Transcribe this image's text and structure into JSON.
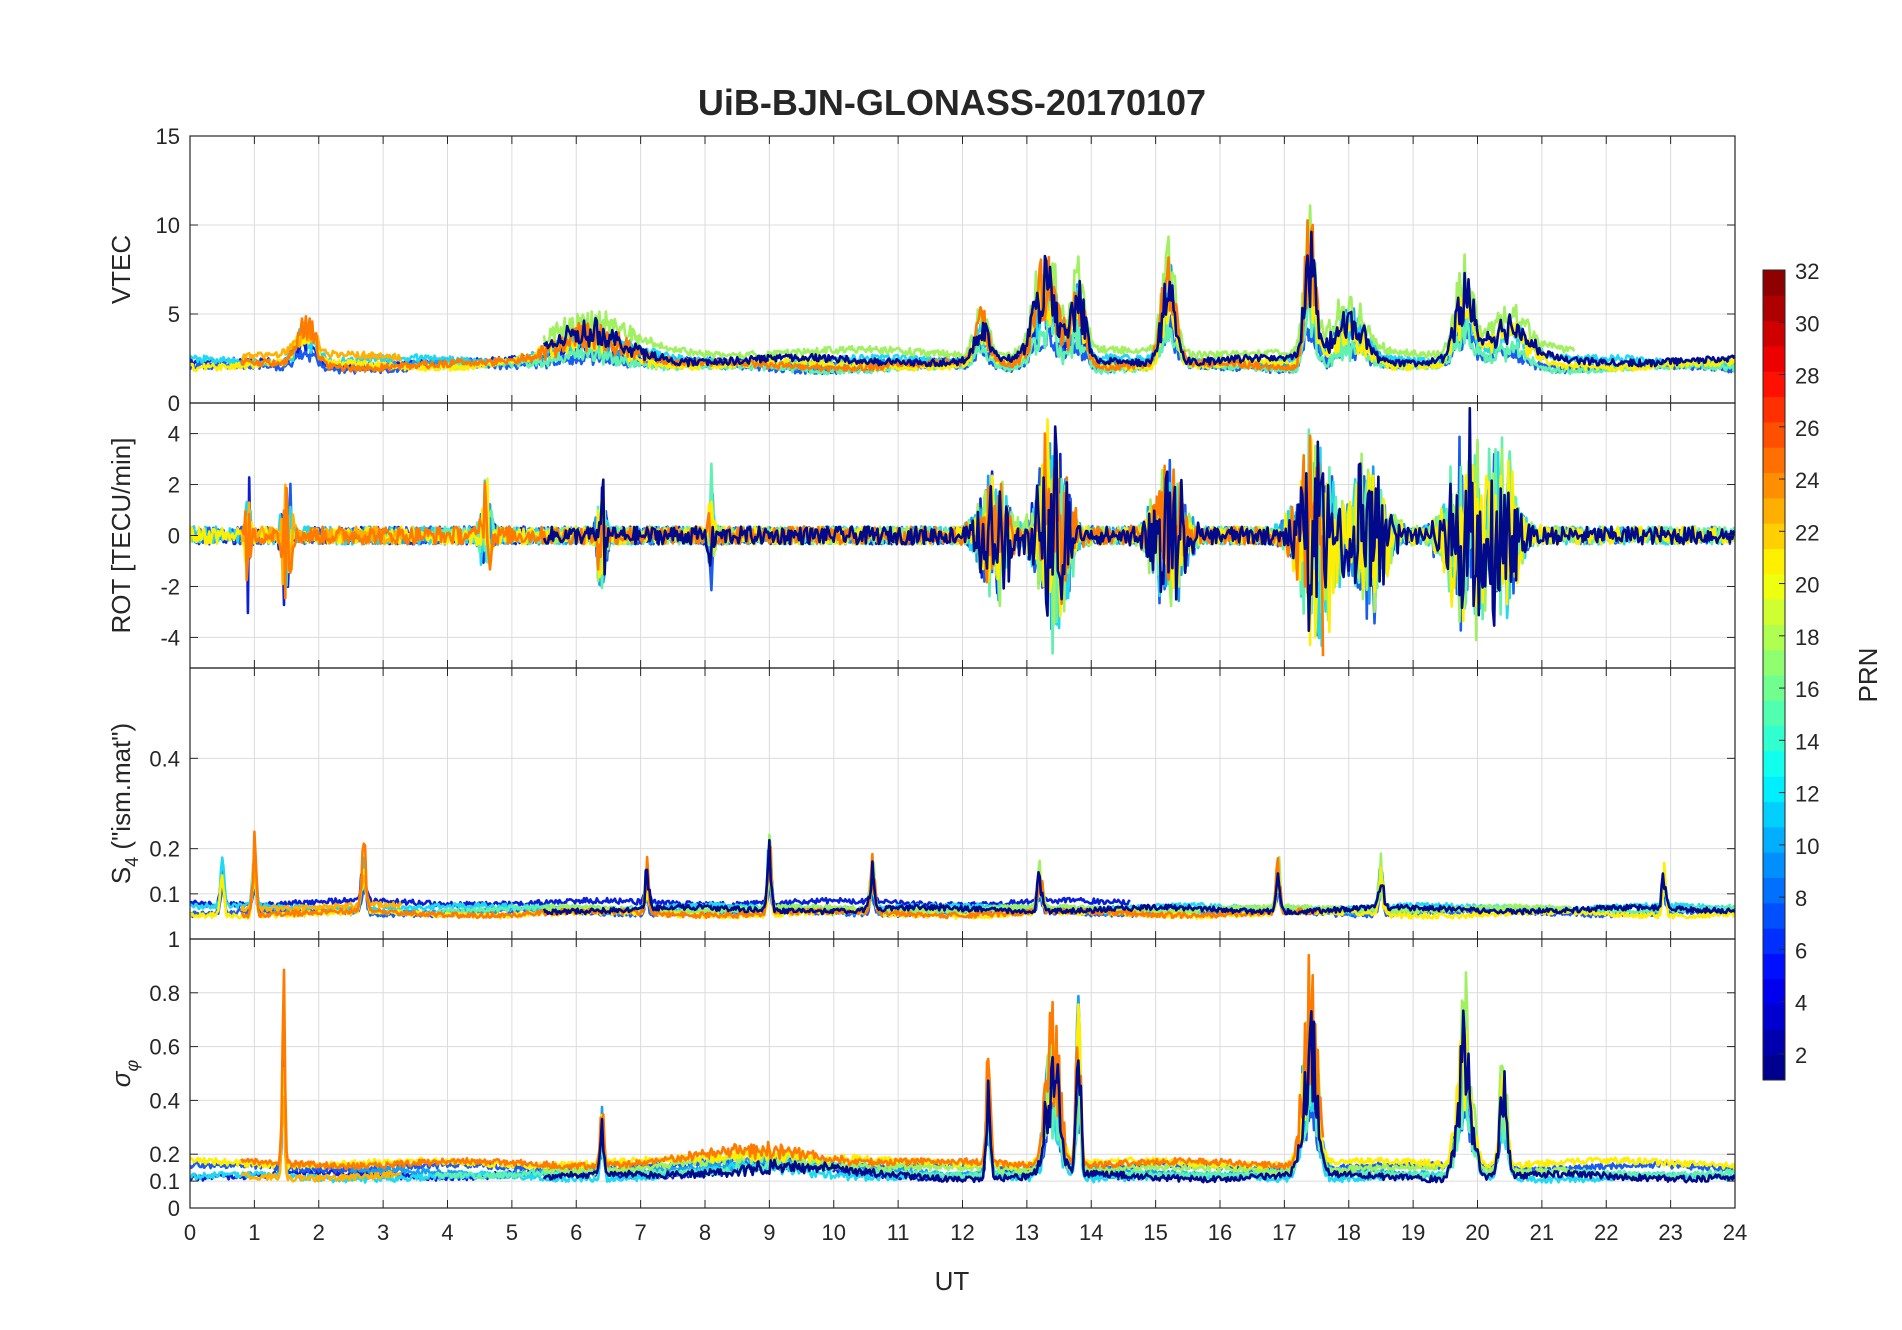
{
  "chart_data": {
    "type": "line",
    "title": "UiB-BJN-GLONASS-20170107",
    "xlabel": "UT",
    "xlim": [
      0,
      24
    ],
    "xticks": [
      0,
      1,
      2,
      3,
      4,
      5,
      6,
      7,
      8,
      9,
      10,
      11,
      12,
      13,
      14,
      15,
      16,
      17,
      18,
      19,
      20,
      21,
      22,
      23,
      24
    ],
    "grid": true,
    "panels": [
      {
        "name": "vtec",
        "ylabel": "VTEC",
        "ylim": [
          0,
          15
        ],
        "yticks": [
          0,
          5,
          10,
          15
        ],
        "ytick_labels": [
          "0",
          "5",
          "10",
          "15"
        ],
        "baseline": 2.2,
        "noise": 0.5,
        "events": [
          {
            "t": 1.8,
            "amp": 3.5,
            "w": 0.2
          },
          {
            "t": 6.2,
            "amp": 2.8,
            "w": 0.8
          },
          {
            "t": 12.3,
            "amp": 3.5,
            "w": 0.15
          },
          {
            "t": 13.3,
            "amp": 8.0,
            "w": 0.25
          },
          {
            "t": 13.8,
            "amp": 6.0,
            "w": 0.15
          },
          {
            "t": 15.2,
            "amp": 7.5,
            "w": 0.15
          },
          {
            "t": 17.4,
            "amp": 10.0,
            "w": 0.12
          },
          {
            "t": 18.0,
            "amp": 4.0,
            "w": 0.35
          },
          {
            "t": 19.8,
            "amp": 6.5,
            "w": 0.2
          },
          {
            "t": 20.5,
            "amp": 3.5,
            "w": 0.4
          }
        ]
      },
      {
        "name": "rot",
        "ylabel": "ROT [TECU/min]",
        "ylim": [
          -5.2,
          5.2
        ],
        "yticks": [
          -4,
          -2,
          0,
          2,
          4
        ],
        "ytick_labels": [
          "-4",
          "-2",
          "0",
          "2",
          "4"
        ],
        "baseline": 0,
        "noise": 0.35,
        "symmetric": true,
        "events": [
          {
            "t": 0.9,
            "amp": 3.5,
            "w": 0.05
          },
          {
            "t": 1.5,
            "amp": 4.0,
            "w": 0.08
          },
          {
            "t": 4.6,
            "amp": 2.5,
            "w": 0.1
          },
          {
            "t": 6.4,
            "amp": 3.0,
            "w": 0.08
          },
          {
            "t": 8.1,
            "amp": 3.0,
            "w": 0.05
          },
          {
            "t": 12.5,
            "amp": 3.0,
            "w": 0.3
          },
          {
            "t": 13.4,
            "amp": 5.0,
            "w": 0.3
          },
          {
            "t": 15.2,
            "amp": 3.5,
            "w": 0.3
          },
          {
            "t": 17.5,
            "amp": 5.2,
            "w": 0.35
          },
          {
            "t": 18.3,
            "amp": 4.0,
            "w": 0.35
          },
          {
            "t": 19.9,
            "amp": 5.2,
            "w": 0.4
          },
          {
            "t": 20.4,
            "amp": 4.0,
            "w": 0.3
          }
        ]
      },
      {
        "name": "s4",
        "ylabel": "S_4 (\"ism.mat\")",
        "ylim": [
          0,
          0.6
        ],
        "yticks": [
          0.1,
          0.2,
          0.4
        ],
        "ytick_labels": [
          "0.1",
          "0.2",
          "0.4"
        ],
        "baseline": 0.06,
        "noise": 0.015,
        "events": [
          {
            "t": 0.5,
            "amp": 0.19,
            "w": 0.04
          },
          {
            "t": 1.0,
            "amp": 0.23,
            "w": 0.04
          },
          {
            "t": 2.7,
            "amp": 0.19,
            "w": 0.05
          },
          {
            "t": 7.1,
            "amp": 0.15,
            "w": 0.04
          },
          {
            "t": 9.0,
            "amp": 0.23,
            "w": 0.04
          },
          {
            "t": 10.6,
            "amp": 0.14,
            "w": 0.05
          },
          {
            "t": 13.2,
            "amp": 0.15,
            "w": 0.05
          },
          {
            "t": 16.9,
            "amp": 0.17,
            "w": 0.04
          },
          {
            "t": 18.5,
            "amp": 0.15,
            "w": 0.05
          },
          {
            "t": 22.9,
            "amp": 0.17,
            "w": 0.04
          }
        ]
      },
      {
        "name": "sigma",
        "ylabel": "σ_φ",
        "ylim": [
          0,
          1
        ],
        "yticks": [
          0,
          0.1,
          0.2,
          0.4,
          0.6,
          0.8,
          1
        ],
        "ytick_labels": [
          "0",
          "0.1",
          "0.2",
          "0.4",
          "0.6",
          "0.8",
          "1"
        ],
        "baseline": 0.13,
        "noise": 0.03,
        "events": [
          {
            "t": 1.45,
            "amp": 0.9,
            "w": 0.03
          },
          {
            "t": 6.4,
            "amp": 0.3,
            "w": 0.04
          },
          {
            "t": 9.0,
            "amp": 0.08,
            "w": 1.2
          },
          {
            "t": 12.4,
            "amp": 0.5,
            "w": 0.05
          },
          {
            "t": 13.4,
            "amp": 0.7,
            "w": 0.15
          },
          {
            "t": 13.8,
            "amp": 0.85,
            "w": 0.05
          },
          {
            "t": 17.4,
            "amp": 0.9,
            "w": 0.15
          },
          {
            "t": 19.8,
            "amp": 0.85,
            "w": 0.15
          },
          {
            "t": 20.4,
            "amp": 0.6,
            "w": 0.08
          }
        ]
      }
    ],
    "colorbar": {
      "label": "PRN",
      "min": 1,
      "max": 32,
      "ticks": [
        2,
        4,
        6,
        8,
        10,
        12,
        14,
        16,
        18,
        20,
        22,
        24,
        26,
        28,
        30,
        32
      ],
      "colormap": "jet"
    },
    "series": [
      {
        "prn": 3,
        "color": "#0a1fd8",
        "start": 0,
        "end": 14.6
      },
      {
        "prn": 6,
        "color": "#1b5cf0",
        "start": 0,
        "end": 24
      },
      {
        "prn": 9,
        "color": "#1a9ff0",
        "start": 2.5,
        "end": 19.2
      },
      {
        "prn": 12,
        "color": "#20d8f0",
        "start": 0,
        "end": 24
      },
      {
        "prn": 15,
        "color": "#60f0b0",
        "start": 3.8,
        "end": 24
      },
      {
        "prn": 17,
        "color": "#a0f060",
        "start": 5.5,
        "end": 21.5
      },
      {
        "prn": 20,
        "color": "#ffee00",
        "start": 0,
        "end": 24
      },
      {
        "prn": 22,
        "color": "#ffb000",
        "start": 0.8,
        "end": 3.3
      },
      {
        "prn": 24,
        "color": "#ff7b00",
        "start": 0.8,
        "end": 17.6
      },
      {
        "prn": 1,
        "color": "#000a8a",
        "start": 5.5,
        "end": 24
      }
    ]
  }
}
